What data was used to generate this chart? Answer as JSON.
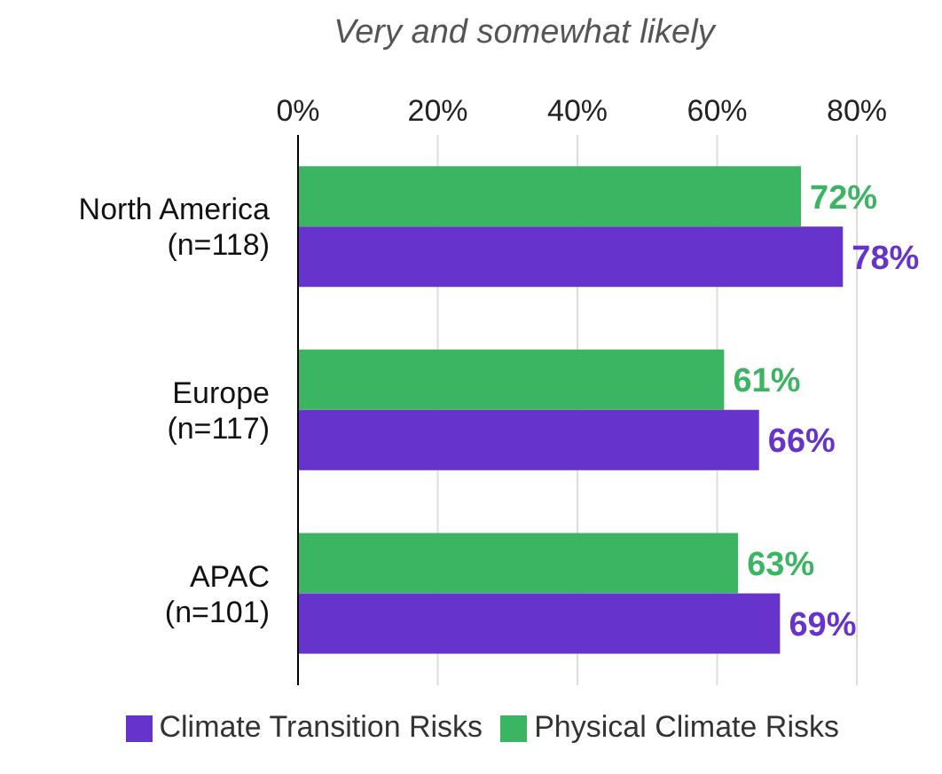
{
  "chart_data": {
    "type": "bar",
    "orientation": "horizontal",
    "subtitle": "Very and somewhat likely",
    "categories": [
      "North America\n(n=118)",
      "Europe\n(n=117)",
      "APAC\n(n=101)"
    ],
    "series": [
      {
        "name": "Physical Climate Risks",
        "color": "#3cb563",
        "values": [
          72,
          61,
          63
        ],
        "value_labels": [
          "72%",
          "61%",
          "63%"
        ]
      },
      {
        "name": "Climate Transition Risks",
        "color": "#6633cc",
        "values": [
          78,
          66,
          69
        ],
        "value_labels": [
          "78%",
          "66%",
          "69%"
        ]
      }
    ],
    "xlim": [
      0,
      80
    ],
    "xticks": [
      {
        "value": 0,
        "label": "0%"
      },
      {
        "value": 20,
        "label": "20%"
      },
      {
        "value": 40,
        "label": "40%"
      },
      {
        "value": 60,
        "label": "60%"
      },
      {
        "value": 80,
        "label": "80%"
      }
    ],
    "grid": "x",
    "legend": "bottom"
  }
}
